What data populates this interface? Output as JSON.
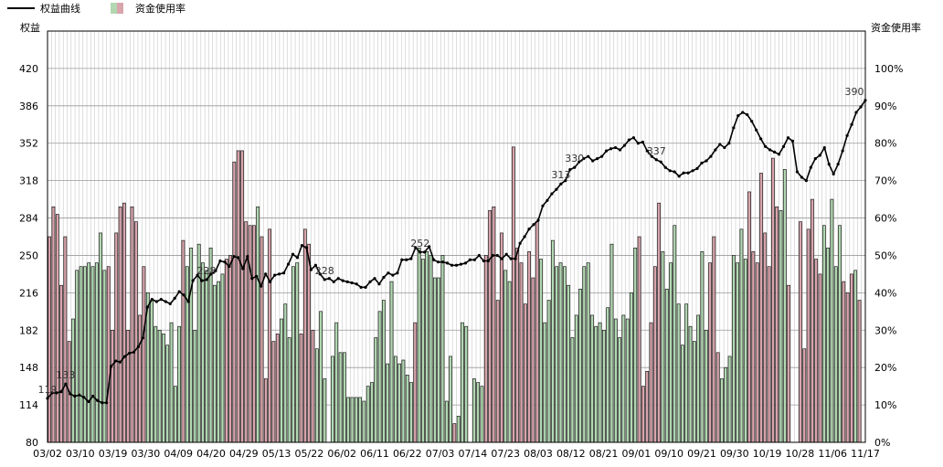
{
  "chart_data": {
    "type": "bar",
    "legend": {
      "placement": "top-left",
      "items": [
        {
          "label": "权益曲线",
          "kind": "line",
          "color": "#000000"
        },
        {
          "label": "资金使用率",
          "kind": "bar",
          "colors": [
            "#d9a5ad",
            "#b2d8b2"
          ]
        }
      ]
    },
    "left_axis": {
      "title": "权益",
      "ylim": [
        80,
        454
      ],
      "ticks": [
        80,
        114,
        148,
        182,
        216,
        250,
        284,
        318,
        352,
        386,
        420
      ]
    },
    "right_axis": {
      "title": "资金使用率",
      "ylim": [
        0,
        110
      ],
      "ticks": [
        "0%",
        "10%",
        "20%",
        "30%",
        "40%",
        "50%",
        "60%",
        "70%",
        "80%",
        "90%",
        "100%"
      ]
    },
    "x_tick_labels": [
      "03/02",
      "03/10",
      "03/19",
      "03/30",
      "04/09",
      "04/20",
      "04/29",
      "05/13",
      "05/22",
      "06/02",
      "06/11",
      "06/22",
      "07/03",
      "07/14",
      "07/23",
      "08/03",
      "08/12",
      "08/21",
      "09/01",
      "09/10",
      "09/21",
      "09/30",
      "10/19",
      "10/28",
      "11/06",
      "11/17"
    ],
    "grid": true,
    "colors": {
      "pink_bar": "#d9a5ad",
      "green_bar": "#b2d8b2",
      "bar_edge": "#000000",
      "line": "#000000",
      "grid": "#c8c8c8"
    },
    "series": [
      {
        "name": "资金使用率",
        "type": "bar",
        "unit": "%",
        "values": [
          55,
          63,
          61,
          42,
          55,
          27,
          33,
          46,
          47,
          47,
          48,
          47,
          48,
          56,
          46,
          47,
          30,
          56,
          63,
          64,
          30,
          63,
          59,
          34,
          47,
          40,
          38,
          31,
          30,
          29,
          26,
          32,
          15,
          31,
          54,
          47,
          52,
          30,
          53,
          48,
          46,
          52,
          42,
          43,
          45,
          49,
          50,
          75,
          78,
          78,
          59,
          58,
          58,
          63,
          55,
          17,
          57,
          27,
          29,
          33,
          37,
          28,
          47,
          48,
          29,
          57,
          53,
          30,
          25,
          35,
          17,
          0,
          23,
          32,
          24,
          24,
          12,
          12,
          12,
          12,
          11,
          15,
          16,
          28,
          35,
          38,
          21,
          43,
          23,
          21,
          22,
          18,
          16,
          32,
          52,
          49,
          51,
          50,
          44,
          44,
          50,
          11,
          23,
          5,
          7,
          32,
          31,
          0,
          17,
          16,
          15,
          50,
          62,
          63,
          38,
          56,
          46,
          43,
          79,
          52,
          48,
          37,
          51,
          44,
          59,
          49,
          32,
          38,
          54,
          47,
          48,
          47,
          42,
          28,
          34,
          41,
          47,
          48,
          34,
          31,
          32,
          30,
          36,
          53,
          33,
          28,
          34,
          33,
          40,
          52,
          55,
          15,
          19,
          32,
          47,
          64,
          51,
          41,
          48,
          58,
          37,
          26,
          37,
          31,
          27,
          34,
          51,
          30,
          48,
          55,
          24,
          17,
          20,
          23,
          50,
          48,
          57,
          49,
          67,
          51,
          48,
          72,
          56,
          47,
          76,
          63,
          62,
          73,
          42,
          0,
          0,
          59,
          25,
          57,
          65,
          49,
          45,
          58,
          52,
          65,
          47,
          58,
          43,
          40,
          45,
          46,
          38,
          0
        ]
      },
      {
        "name": "权益曲线",
        "type": "line",
        "values": [
          120,
          125,
          125,
          126,
          133,
          124,
          122,
          123,
          121,
          117,
          122,
          118,
          116,
          116,
          149,
          154,
          153,
          158,
          161,
          162,
          167,
          175,
          203,
          210,
          208,
          210,
          208,
          206,
          211,
          217,
          214,
          208,
          227,
          232,
          227,
          228,
          233,
          236,
          245,
          244,
          240,
          249,
          248,
          238,
          249,
          229,
          231,
          222,
          233,
          226,
          232,
          233,
          234,
          242,
          251,
          248,
          259,
          257,
          237,
          241,
          233,
          228,
          229,
          226,
          229,
          227,
          226,
          225,
          224,
          221,
          221,
          226,
          229,
          224,
          230,
          234,
          232,
          234,
          246,
          246,
          247,
          257,
          253,
          253,
          258,
          246,
          244,
          244,
          243,
          241,
          241,
          242,
          243,
          246,
          246,
          250,
          245,
          245,
          250,
          250,
          247,
          251,
          247,
          247,
          261,
          267,
          274,
          278,
          282,
          295,
          300,
          306,
          310,
          315,
          318,
          328,
          330,
          335,
          338,
          340,
          336,
          338,
          340,
          345,
          347,
          348,
          346,
          350,
          355,
          357,
          352,
          353,
          345,
          340,
          337,
          335,
          330,
          327,
          326,
          322,
          325,
          325,
          327,
          329,
          334,
          336,
          340,
          346,
          351,
          348,
          352,
          366,
          377,
          380,
          378,
          372,
          364,
          356,
          349,
          346,
          344,
          342,
          349,
          357,
          354,
          326,
          321,
          318,
          330,
          338,
          341,
          348,
          333,
          324,
          333,
          345,
          359,
          369,
          380,
          385,
          391
        ]
      }
    ],
    "point_labels": [
      {
        "text": "119",
        "value": 119
      },
      {
        "text": "133",
        "value": 133
      },
      {
        "text": "228",
        "value": 228
      },
      {
        "text": "228",
        "value": 228
      },
      {
        "text": "252",
        "value": 252
      },
      {
        "text": "313",
        "value": 313
      },
      {
        "text": "330",
        "value": 330
      },
      {
        "text": "337",
        "value": 337
      },
      {
        "text": "390",
        "value": 390
      }
    ]
  }
}
